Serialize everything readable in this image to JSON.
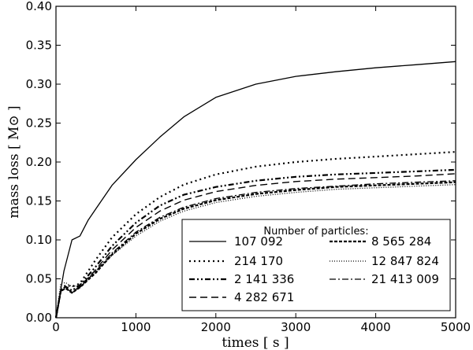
{
  "chart_data": {
    "type": "line",
    "title": "",
    "xlabel": "times  [ s ]",
    "ylabel": "mass loss  [ M⊙ ]",
    "xlim": [
      0,
      5000
    ],
    "ylim": [
      0.0,
      0.4
    ],
    "xticks": [
      0,
      1000,
      2000,
      3000,
      4000,
      5000
    ],
    "yticks": [
      0.0,
      0.05,
      0.1,
      0.15,
      0.2,
      0.25,
      0.3,
      0.35,
      0.4
    ],
    "xtick_labels": [
      "0",
      "1000",
      "2000",
      "3000",
      "4000",
      "5000"
    ],
    "ytick_labels": [
      "0.00",
      "0.05",
      "0.10",
      "0.15",
      "0.20",
      "0.25",
      "0.30",
      "0.35",
      "0.40"
    ],
    "grid": false,
    "legend": {
      "title": "Number of particles:",
      "placement": "lower-right"
    },
    "series": [
      {
        "name": "107 092",
        "style": "solid",
        "x": [
          0,
          50,
          100,
          200,
          300,
          400,
          500,
          700,
          1000,
          1300,
          1600,
          2000,
          2500,
          3000,
          3500,
          4000,
          4500,
          5000
        ],
        "y": [
          0.0,
          0.03,
          0.06,
          0.1,
          0.105,
          0.125,
          0.14,
          0.17,
          0.203,
          0.232,
          0.258,
          0.283,
          0.3,
          0.31,
          0.316,
          0.321,
          0.325,
          0.329
        ]
      },
      {
        "name": "214 170",
        "style": "dot",
        "x": [
          0,
          60,
          120,
          200,
          300,
          500,
          700,
          1000,
          1300,
          1600,
          2000,
          2500,
          3000,
          3500,
          4000,
          4500,
          5000
        ],
        "y": [
          0.0,
          0.035,
          0.042,
          0.04,
          0.044,
          0.075,
          0.103,
          0.133,
          0.155,
          0.171,
          0.184,
          0.194,
          0.2,
          0.204,
          0.207,
          0.21,
          0.213
        ]
      },
      {
        "name": "2 141 336",
        "style": "dashdotdot",
        "x": [
          0,
          60,
          120,
          200,
          300,
          500,
          700,
          1000,
          1300,
          1600,
          2000,
          2500,
          3000,
          3500,
          4000,
          4500,
          5000
        ],
        "y": [
          0.0,
          0.035,
          0.04,
          0.035,
          0.042,
          0.066,
          0.092,
          0.122,
          0.144,
          0.158,
          0.168,
          0.176,
          0.181,
          0.184,
          0.186,
          0.188,
          0.19
        ]
      },
      {
        "name": "4 282 671",
        "style": "dash",
        "x": [
          0,
          60,
          120,
          200,
          300,
          500,
          700,
          1000,
          1300,
          1600,
          2000,
          2500,
          3000,
          3500,
          4000,
          4500,
          5000
        ],
        "y": [
          0.0,
          0.034,
          0.038,
          0.033,
          0.04,
          0.062,
          0.087,
          0.116,
          0.137,
          0.151,
          0.162,
          0.17,
          0.175,
          0.178,
          0.18,
          0.182,
          0.185
        ]
      },
      {
        "name": "8 565 284",
        "style": "thickdash",
        "x": [
          0,
          60,
          120,
          200,
          300,
          500,
          700,
          1000,
          1300,
          1600,
          2000,
          2500,
          3000,
          3500,
          4000,
          4500,
          5000
        ],
        "y": [
          0.0,
          0.034,
          0.038,
          0.032,
          0.039,
          0.058,
          0.081,
          0.108,
          0.127,
          0.14,
          0.151,
          0.159,
          0.164,
          0.168,
          0.17,
          0.172,
          0.174
        ]
      },
      {
        "name": "12 847 824",
        "style": "finedot",
        "x": [
          0,
          60,
          120,
          200,
          300,
          500,
          700,
          1000,
          1300,
          1600,
          2000,
          2500,
          3000,
          3500,
          4000,
          4500,
          5000
        ],
        "y": [
          0.0,
          0.044,
          0.045,
          0.04,
          0.042,
          0.06,
          0.08,
          0.105,
          0.124,
          0.137,
          0.148,
          0.156,
          0.161,
          0.165,
          0.167,
          0.169,
          0.171
        ]
      },
      {
        "name": "21 413 009",
        "style": "dashdot",
        "x": [
          0,
          60,
          120,
          200,
          300,
          500,
          700,
          1000,
          1300,
          1600,
          2000,
          2500,
          3000,
          3500,
          4000,
          4500,
          5000
        ],
        "y": [
          0.0,
          0.034,
          0.038,
          0.032,
          0.039,
          0.06,
          0.083,
          0.11,
          0.129,
          0.142,
          0.153,
          0.161,
          0.166,
          0.169,
          0.172,
          0.174,
          0.176
        ]
      }
    ]
  }
}
